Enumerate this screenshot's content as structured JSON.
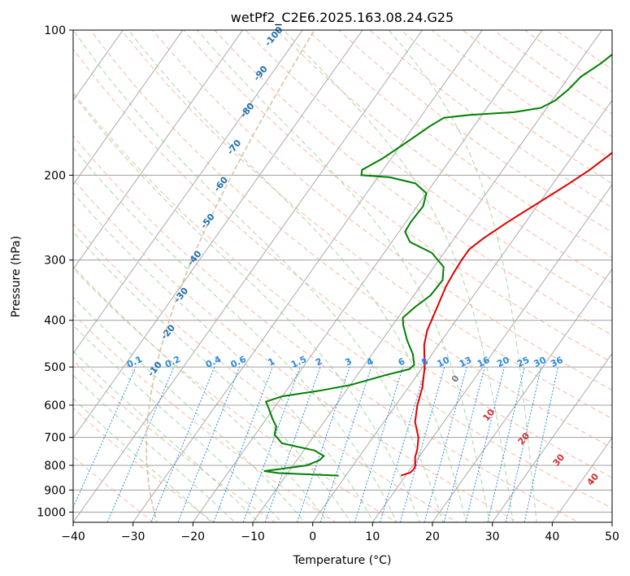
{
  "chart_data": {
    "type": "line",
    "subtype": "skew-T log-P diagram",
    "title": "wetPf2_C2E6.2025.163.08.24.G25",
    "xlabel": "Temperature (°C)",
    "ylabel": "Pressure (hPa)",
    "xlim": [
      -40,
      50
    ],
    "ylim_hpa": [
      1050,
      100
    ],
    "y_scale": "log",
    "grid": true,
    "x_ticks": [
      "−40",
      "−30",
      "−20",
      "−10",
      "0",
      "10",
      "20",
      "30",
      "40",
      "50"
    ],
    "y_ticks": [
      "100",
      "200",
      "300",
      "400",
      "500",
      "600",
      "700",
      "800",
      "900",
      "1000"
    ],
    "colors": {
      "temperature": "#e00000",
      "dewpoint": "#008000",
      "isotherm": "#a0a0a0",
      "dry_adiabat": "#f7a58a",
      "moist_adiabat": "#88c888",
      "mixing_ratio": "#2a8ae0",
      "dry_label": "#d32f2f",
      "moist_label": "#1f6fb0",
      "zero_label": "#808080",
      "lcl_curve": "#d9c4a5"
    },
    "series": [
      {
        "role": "temperature",
        "points": [
          {
            "p": 840,
            "t": 9.2
          },
          {
            "p": 828,
            "t": 10.4
          },
          {
            "p": 815,
            "t": 10.6
          },
          {
            "p": 800,
            "t": 10.4
          },
          {
            "p": 770,
            "t": 9.4
          },
          {
            "p": 740,
            "t": 8.8
          },
          {
            "p": 700,
            "t": 7.6
          },
          {
            "p": 650,
            "t": 5.2
          },
          {
            "p": 600,
            "t": 3.6
          },
          {
            "p": 550,
            "t": 2.3
          },
          {
            "p": 500,
            "t": 0.3
          },
          {
            "p": 450,
            "t": -2.4
          },
          {
            "p": 420,
            "t": -3.6
          },
          {
            "p": 380,
            "t": -4.6
          },
          {
            "p": 340,
            "t": -5.7
          },
          {
            "p": 320,
            "t": -6.0
          },
          {
            "p": 300,
            "t": -6.2
          },
          {
            "p": 285,
            "t": -6.2
          },
          {
            "p": 270,
            "t": -5.1
          },
          {
            "p": 250,
            "t": -3.0
          },
          {
            "p": 230,
            "t": -0.4
          },
          {
            "p": 210,
            "t": 2.4
          },
          {
            "p": 195,
            "t": 4.5
          },
          {
            "p": 180,
            "t": 6.2
          },
          {
            "p": 165,
            "t": 7.0
          },
          {
            "p": 155,
            "t": 7.6
          },
          {
            "p": 145,
            "t": 8.4
          },
          {
            "p": 135,
            "t": 9.5
          },
          {
            "p": 125,
            "t": 10.3
          },
          {
            "p": 115,
            "t": 11.0
          },
          {
            "p": 108,
            "t": 12.2
          },
          {
            "p": 100,
            "t": 13.7
          }
        ]
      },
      {
        "role": "dewpoint",
        "points": [
          {
            "p": 840,
            "t": -1.2
          },
          {
            "p": 835,
            "t": -6.5
          },
          {
            "p": 830,
            "t": -11.5
          },
          {
            "p": 822,
            "t": -14.2
          },
          {
            "p": 815,
            "t": -12.0
          },
          {
            "p": 800,
            "t": -7.7
          },
          {
            "p": 780,
            "t": -6.2
          },
          {
            "p": 765,
            "t": -6.0
          },
          {
            "p": 745,
            "t": -8.2
          },
          {
            "p": 720,
            "t": -14.5
          },
          {
            "p": 690,
            "t": -16.8
          },
          {
            "p": 665,
            "t": -17.4
          },
          {
            "p": 640,
            "t": -19.0
          },
          {
            "p": 610,
            "t": -20.8
          },
          {
            "p": 590,
            "t": -22.1
          },
          {
            "p": 575,
            "t": -20.0
          },
          {
            "p": 560,
            "t": -14.5
          },
          {
            "p": 545,
            "t": -10.0
          },
          {
            "p": 520,
            "t": -5.3
          },
          {
            "p": 505,
            "t": -2.0
          },
          {
            "p": 495,
            "t": -1.7
          },
          {
            "p": 470,
            "t": -3.2
          },
          {
            "p": 440,
            "t": -5.8
          },
          {
            "p": 410,
            "t": -8.2
          },
          {
            "p": 395,
            "t": -9.2
          },
          {
            "p": 375,
            "t": -8.4
          },
          {
            "p": 355,
            "t": -7.2
          },
          {
            "p": 330,
            "t": -7.0
          },
          {
            "p": 310,
            "t": -8.4
          },
          {
            "p": 290,
            "t": -12.0
          },
          {
            "p": 275,
            "t": -17.0
          },
          {
            "p": 262,
            "t": -19.0
          },
          {
            "p": 250,
            "t": -19.2
          },
          {
            "p": 232,
            "t": -19.0
          },
          {
            "p": 218,
            "t": -20.0
          },
          {
            "p": 208,
            "t": -23.0
          },
          {
            "p": 202,
            "t": -28.0
          },
          {
            "p": 200,
            "t": -33.0
          },
          {
            "p": 195,
            "t": -33.5
          },
          {
            "p": 185,
            "t": -31.5
          },
          {
            "p": 170,
            "t": -29.2
          },
          {
            "p": 158,
            "t": -27.3
          },
          {
            "p": 152,
            "t": -26.0
          },
          {
            "p": 150,
            "t": -22.0
          },
          {
            "p": 148,
            "t": -15.0
          },
          {
            "p": 145,
            "t": -11.0
          },
          {
            "p": 140,
            "t": -9.5
          },
          {
            "p": 133,
            "t": -8.6
          },
          {
            "p": 125,
            "t": -8.0
          },
          {
            "p": 117,
            "t": -6.2
          },
          {
            "p": 111,
            "t": -5.2
          },
          {
            "p": 105,
            "t": -3.6
          },
          {
            "p": 100,
            "t": -2.0
          }
        ]
      }
    ],
    "annotations": {
      "mixing_ratio_labels": [
        "0.1",
        "0.2",
        "0.4",
        "0.6",
        "1",
        "1.5",
        "2",
        "3",
        "4",
        "6",
        "8",
        "10",
        "13",
        "16",
        "20",
        "25",
        "30",
        "36"
      ],
      "mixing_ratio_values": [
        0.1,
        0.2,
        0.4,
        0.6,
        1,
        1.5,
        2,
        3,
        4,
        6,
        8,
        10,
        13,
        16,
        20,
        25,
        30,
        36
      ],
      "dry_adiabat_labels": [
        "10",
        "20",
        "30",
        "40"
      ],
      "dry_adiabat_values": [
        10,
        20,
        30,
        40
      ],
      "moist_adiabat_labels": [
        "-100",
        "-90",
        "-80",
        "-70",
        "-60",
        "-50",
        "-40",
        "-30",
        "-20",
        "-10"
      ],
      "moist_adiabat_values": [
        -100,
        -90,
        -80,
        -70,
        -60,
        -50,
        -40,
        -30,
        -20,
        -10
      ],
      "zero_label": "0"
    }
  }
}
